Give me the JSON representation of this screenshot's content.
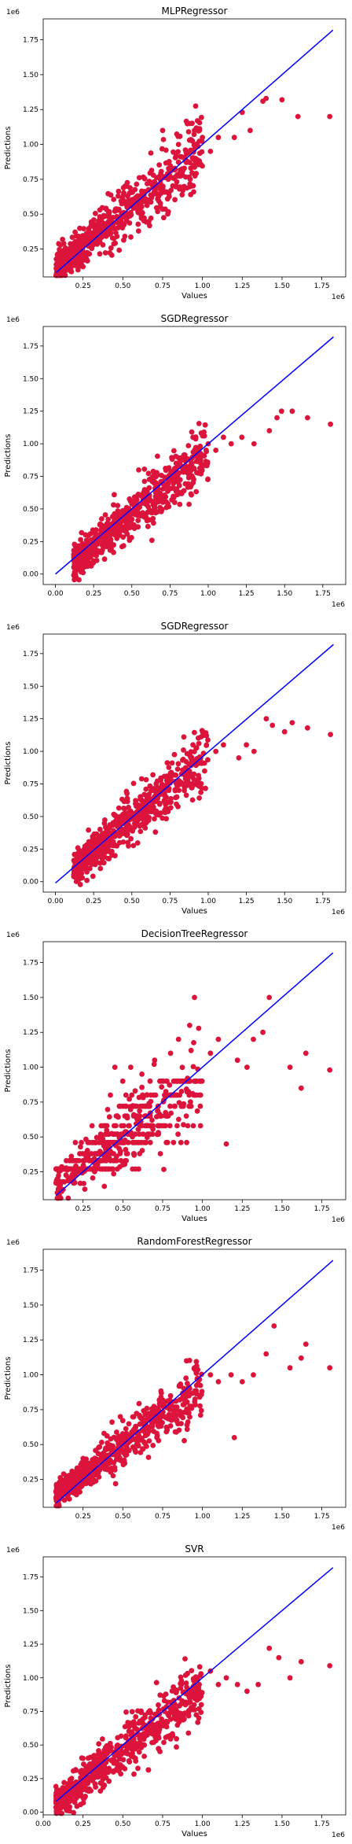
{
  "figure": {
    "layout": "six stacked scatter subplots",
    "scatter_color": "#dc143c",
    "line_color": "#0000ff"
  },
  "chart_data": [
    {
      "type": "scatter",
      "title": "MLPRegressor",
      "xlabel": "Values",
      "ylabel": "Predictions",
      "x_multiplier": "1e6",
      "y_multiplier": "1e6",
      "xlim": [
        0.0,
        1.9
      ],
      "ylim": [
        0.05,
        1.9
      ],
      "xticks": [
        0.25,
        0.5,
        0.75,
        1.0,
        1.25,
        1.5,
        1.75
      ],
      "xtick_labels": [
        "0.25",
        "0.50",
        "0.75",
        "1.00",
        "1.25",
        "1.50",
        "1.75"
      ],
      "yticks": [
        0.25,
        0.5,
        0.75,
        1.0,
        1.25,
        1.5,
        1.75
      ],
      "ytick_labels": [
        "0.25",
        "0.50",
        "0.75",
        "1.00",
        "1.25",
        "1.50",
        "1.75"
      ],
      "identity_line": [
        [
          0.08,
          0.08
        ],
        [
          1.82,
          1.82
        ]
      ],
      "outliers": [
        [
          1.8,
          1.2
        ],
        [
          1.6,
          1.2
        ],
        [
          1.5,
          1.32
        ],
        [
          1.4,
          1.33
        ],
        [
          1.38,
          1.31
        ],
        [
          1.25,
          1.23
        ],
        [
          1.3,
          1.1
        ],
        [
          1.2,
          1.05
        ],
        [
          1.1,
          1.05
        ],
        [
          1.05,
          0.95
        ],
        [
          0.95,
          1.1
        ],
        [
          1.0,
          1.05
        ],
        [
          0.92,
          1.15
        ],
        [
          0.75,
          1.1
        ],
        [
          0.85,
          1.0
        ],
        [
          0.95,
          0.85
        ]
      ],
      "cloud_spec": {
        "n": 640,
        "xmin": 0.08,
        "xmax": 1.0,
        "slope": 0.92,
        "intercept": 0.04,
        "noise": 0.085
      }
    },
    {
      "type": "scatter",
      "title": "SGDRegressor",
      "xlabel": "",
      "ylabel": "Predictions",
      "x_multiplier": "1e6",
      "y_multiplier": "1e6",
      "xlim": [
        -0.08,
        1.9
      ],
      "ylim": [
        -0.08,
        1.9
      ],
      "xticks": [
        0.0,
        0.25,
        0.5,
        0.75,
        1.0,
        1.25,
        1.5,
        1.75
      ],
      "xtick_labels": [
        "0.00",
        "0.25",
        "0.50",
        "0.75",
        "1.00",
        "1.25",
        "1.50",
        "1.75"
      ],
      "yticks": [
        0.0,
        0.25,
        0.5,
        0.75,
        1.0,
        1.25,
        1.5,
        1.75
      ],
      "ytick_labels": [
        "0.00",
        "0.25",
        "0.50",
        "0.75",
        "1.00",
        "1.25",
        "1.50",
        "1.75"
      ],
      "identity_line": [
        [
          0.0,
          0.0
        ],
        [
          1.82,
          1.82
        ]
      ],
      "outliers": [
        [
          1.8,
          1.15
        ],
        [
          1.65,
          1.2
        ],
        [
          1.55,
          1.25
        ],
        [
          1.48,
          1.25
        ],
        [
          1.45,
          1.2
        ],
        [
          1.4,
          1.1
        ],
        [
          1.3,
          1.0
        ],
        [
          1.22,
          1.05
        ],
        [
          1.15,
          1.0
        ],
        [
          1.1,
          1.05
        ],
        [
          1.05,
          0.95
        ],
        [
          1.0,
          1.0
        ],
        [
          0.95,
          0.85
        ],
        [
          0.9,
          1.05
        ]
      ],
      "cloud_spec": {
        "n": 640,
        "xmin": 0.12,
        "xmax": 1.0,
        "slope": 0.98,
        "intercept": -0.03,
        "noise": 0.08
      }
    },
    {
      "type": "scatter",
      "title": "SGDRegressor",
      "xlabel": "Values",
      "ylabel": "Predictions",
      "x_multiplier": "1e6",
      "y_multiplier": "1e6",
      "xlim": [
        -0.08,
        1.9
      ],
      "ylim": [
        -0.08,
        1.9
      ],
      "xticks": [
        0.0,
        0.25,
        0.5,
        0.75,
        1.0,
        1.25,
        1.5,
        1.75
      ],
      "xtick_labels": [
        "0.00",
        "0.25",
        "0.50",
        "0.75",
        "1.00",
        "1.25",
        "1.50",
        "1.75"
      ],
      "yticks": [
        0.0,
        0.25,
        0.5,
        0.75,
        1.0,
        1.25,
        1.5,
        1.75
      ],
      "ytick_labels": [
        "0.00",
        "0.25",
        "0.50",
        "0.75",
        "1.00",
        "1.25",
        "1.50",
        "1.75"
      ],
      "identity_line": [
        [
          0.0,
          -0.01
        ],
        [
          1.82,
          1.82
        ]
      ],
      "outliers": [
        [
          1.8,
          1.13
        ],
        [
          1.65,
          1.18
        ],
        [
          1.55,
          1.22
        ],
        [
          1.5,
          1.15
        ],
        [
          1.42,
          1.2
        ],
        [
          1.38,
          1.25
        ],
        [
          1.3,
          1.0
        ],
        [
          1.25,
          1.05
        ],
        [
          1.2,
          0.95
        ],
        [
          1.1,
          1.05
        ],
        [
          1.05,
          1.0
        ],
        [
          0.95,
          0.95
        ],
        [
          0.9,
          1.05
        ]
      ],
      "cloud_spec": {
        "n": 640,
        "xmin": 0.12,
        "xmax": 1.0,
        "slope": 0.98,
        "intercept": -0.02,
        "noise": 0.085
      }
    },
    {
      "type": "scatter",
      "title": "DecisionTreeRegressor",
      "xlabel": "Values",
      "ylabel": "Predictions",
      "x_multiplier": "1e6",
      "y_multiplier": "1e6",
      "xlim": [
        0.0,
        1.9
      ],
      "ylim": [
        0.05,
        1.9
      ],
      "xticks": [
        0.25,
        0.5,
        0.75,
        1.0,
        1.25,
        1.5,
        1.75
      ],
      "xtick_labels": [
        "0.25",
        "0.50",
        "0.75",
        "1.00",
        "1.25",
        "1.50",
        "1.75"
      ],
      "yticks": [
        0.25,
        0.5,
        0.75,
        1.0,
        1.25,
        1.5,
        1.75
      ],
      "ytick_labels": [
        "0.25",
        "0.50",
        "0.75",
        "1.00",
        "1.25",
        "1.50",
        "1.75"
      ],
      "identity_line": [
        [
          0.08,
          0.08
        ],
        [
          1.82,
          1.82
        ]
      ],
      "outliers": [
        [
          1.8,
          0.98
        ],
        [
          1.65,
          1.1
        ],
        [
          1.62,
          0.85
        ],
        [
          1.55,
          1.0
        ],
        [
          1.42,
          1.5
        ],
        [
          1.38,
          1.25
        ],
        [
          1.32,
          1.2
        ],
        [
          1.28,
          1.0
        ],
        [
          1.22,
          1.05
        ],
        [
          1.15,
          0.45
        ],
        [
          1.1,
          1.2
        ],
        [
          1.05,
          1.1
        ],
        [
          0.95,
          1.5
        ],
        [
          0.92,
          1.3
        ],
        [
          0.85,
          1.2
        ],
        [
          0.8,
          1.1
        ],
        [
          0.7,
          1.05
        ],
        [
          0.62,
          0.95
        ],
        [
          0.55,
          1.0
        ],
        [
          0.45,
          1.0
        ]
      ],
      "cloud_spec": {
        "n": 600,
        "xmin": 0.08,
        "xmax": 1.0,
        "slope": 0.82,
        "intercept": 0.08,
        "noise": 0.11,
        "steps": [
          0.27,
          0.33,
          0.38,
          0.46,
          0.52,
          0.58,
          0.65,
          0.72,
          0.8,
          0.9
        ]
      }
    },
    {
      "type": "scatter",
      "title": "RandomForestRegressor",
      "xlabel": "",
      "ylabel": "Predictions",
      "x_multiplier": "1e6",
      "y_multiplier": "1e6",
      "xlim": [
        0.0,
        1.9
      ],
      "ylim": [
        0.05,
        1.9
      ],
      "xticks": [
        0.25,
        0.5,
        0.75,
        1.0,
        1.25,
        1.5,
        1.75
      ],
      "xtick_labels": [
        "0.25",
        "0.50",
        "0.75",
        "1.00",
        "1.25",
        "1.50",
        "1.75"
      ],
      "yticks": [
        0.25,
        0.5,
        0.75,
        1.0,
        1.25,
        1.5,
        1.75
      ],
      "ytick_labels": [
        "0.25",
        "0.50",
        "0.75",
        "1.00",
        "1.25",
        "1.50",
        "1.75"
      ],
      "identity_line": [
        [
          0.08,
          0.08
        ],
        [
          1.82,
          1.82
        ]
      ],
      "outliers": [
        [
          1.8,
          1.05
        ],
        [
          1.65,
          1.22
        ],
        [
          1.62,
          1.12
        ],
        [
          1.55,
          1.05
        ],
        [
          1.45,
          1.35
        ],
        [
          1.4,
          1.15
        ],
        [
          1.32,
          1.0
        ],
        [
          1.25,
          0.95
        ],
        [
          1.2,
          0.55
        ],
        [
          1.18,
          1.0
        ],
        [
          1.1,
          0.95
        ],
        [
          1.05,
          1.0
        ],
        [
          0.95,
          1.05
        ],
        [
          0.92,
          0.9
        ],
        [
          0.9,
          1.1
        ]
      ],
      "cloud_spec": {
        "n": 640,
        "xmin": 0.08,
        "xmax": 1.0,
        "slope": 0.85,
        "intercept": 0.07,
        "noise": 0.07
      }
    },
    {
      "type": "scatter",
      "title": "SVR",
      "xlabel": "Values",
      "ylabel": "Predictions",
      "x_multiplier": "1e6",
      "y_multiplier": "1e6",
      "xlim": [
        0.0,
        1.9
      ],
      "ylim": [
        -0.02,
        1.9
      ],
      "xticks": [
        0.0,
        0.25,
        0.5,
        0.75,
        1.0,
        1.25,
        1.5,
        1.75
      ],
      "xtick_labels": [
        "0.00",
        "0.25",
        "0.50",
        "0.75",
        "1.00",
        "1.25",
        "1.50",
        "1.75"
      ],
      "yticks": [
        0.0,
        0.25,
        0.5,
        0.75,
        1.0,
        1.25,
        1.5,
        1.75
      ],
      "ytick_labels": [
        "0.00",
        "0.25",
        "0.50",
        "0.75",
        "1.00",
        "1.25",
        "1.50",
        "1.75"
      ],
      "identity_line": [
        [
          0.08,
          0.08
        ],
        [
          1.82,
          1.82
        ]
      ],
      "outliers": [
        [
          1.8,
          1.09
        ],
        [
          1.62,
          1.12
        ],
        [
          1.55,
          1.0
        ],
        [
          1.48,
          1.15
        ],
        [
          1.42,
          1.22
        ],
        [
          1.35,
          0.95
        ],
        [
          1.28,
          0.9
        ],
        [
          1.22,
          0.95
        ],
        [
          1.15,
          1.0
        ],
        [
          1.1,
          0.95
        ],
        [
          1.05,
          1.05
        ],
        [
          0.98,
          0.95
        ],
        [
          0.92,
          0.85
        ]
      ],
      "cloud_spec": {
        "n": 640,
        "xmin": 0.08,
        "xmax": 1.0,
        "slope": 0.92,
        "intercept": 0.0,
        "noise": 0.08
      }
    }
  ]
}
